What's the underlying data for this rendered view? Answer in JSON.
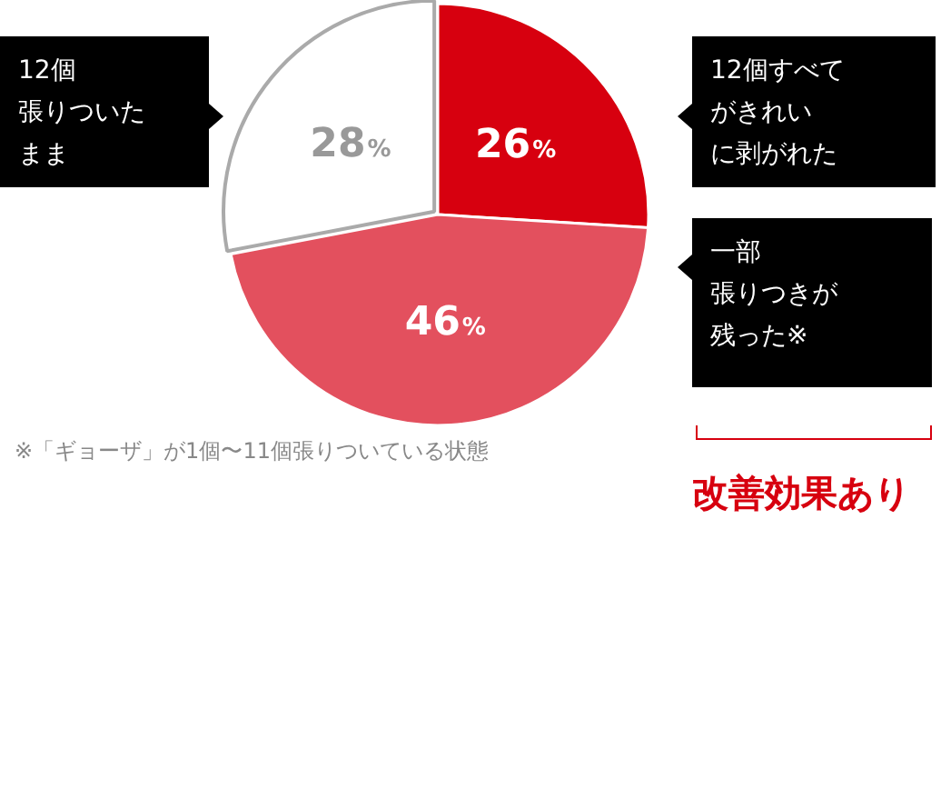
{
  "chart_data": {
    "type": "pie",
    "categories": [
      "12個すべてがきれいに剥がれた",
      "一部張りつきが残った※",
      "12個張りついたまま"
    ],
    "values": [
      26,
      46,
      28
    ],
    "colors": [
      "#d7000f",
      "#e3505e",
      "#ffffff"
    ],
    "value_labels": [
      "26%",
      "46%",
      "28%"
    ],
    "legend": false,
    "annotations": [
      "※「ギョーザ」が1個〜11個張りついている状態",
      "改善効果あり"
    ]
  }
}
